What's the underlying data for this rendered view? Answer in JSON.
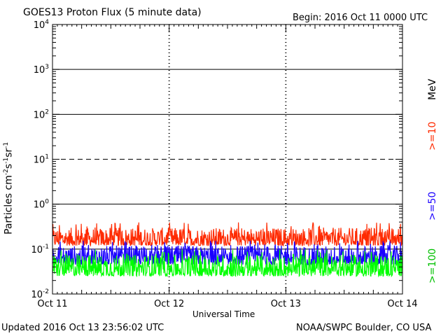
{
  "header": {
    "title": "GOES13 Proton Flux (5 minute data)",
    "begin": "Begin: 2016 Oct 11 0000 UTC"
  },
  "footer": {
    "updated": "Updated 2016 Oct 13 23:56:02 UTC",
    "credit": "NOAA/SWPC Boulder, CO USA"
  },
  "chart_data": {
    "type": "line",
    "title": "GOES13 Proton Flux (5 minute data)",
    "xlabel": "Universal Time",
    "ylabel_parts": [
      "Particles cm",
      "-2",
      "s",
      "-1",
      "sr",
      "-1"
    ],
    "y_scale": "log",
    "ylim": [
      0.01,
      10000
    ],
    "y_ticks": [
      {
        "base": "10",
        "exp": "4",
        "value": 10000
      },
      {
        "base": "10",
        "exp": "3",
        "value": 1000
      },
      {
        "base": "10",
        "exp": "2",
        "value": 100
      },
      {
        "base": "10",
        "exp": "1",
        "value": 10
      },
      {
        "base": "10",
        "exp": "0",
        "value": 1
      },
      {
        "base": "10",
        "exp": "-1",
        "value": 0.1
      },
      {
        "base": "10",
        "exp": "-2",
        "value": 0.01
      }
    ],
    "x_ticks": [
      "Oct 11",
      "Oct 12",
      "Oct 13",
      "Oct 14"
    ],
    "xlim_days": [
      0,
      3
    ],
    "threshold_lines": [
      {
        "value": 10,
        "style": "dashed"
      },
      {
        "value": 1000,
        "style": "solid"
      },
      {
        "value": 100,
        "style": "solid"
      },
      {
        "value": 1,
        "style": "solid"
      },
      {
        "value": 0.1,
        "style": "solid"
      }
    ],
    "legend_unit": "MeV",
    "series": [
      {
        "name": ">=10",
        "color": "#ff2a00",
        "typical_low": 0.12,
        "typical_high": 0.3
      },
      {
        "name": ">=50",
        "color": "#1a00ff",
        "typical_low": 0.045,
        "typical_high": 0.12
      },
      {
        "name": ">=100",
        "color": "#00ff00",
        "typical_low": 0.025,
        "typical_high": 0.075
      }
    ]
  }
}
